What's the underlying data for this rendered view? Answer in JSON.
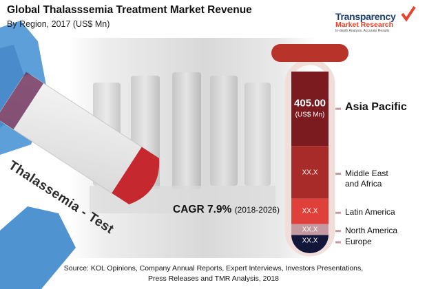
{
  "title": "Global Thalasssemia Treatment Market Revenue",
  "subtitle": "By Region, 2017 (US$ Mn)",
  "logo": {
    "line1": "Transparency",
    "line2": "Market Research",
    "tagline": "In-depth Analysis. Accurate Results"
  },
  "tube_label": "Thalassemia - Test",
  "cagr": {
    "label": "CAGR 7.9%",
    "period": "(2018-2026)"
  },
  "source": {
    "line1": "Source: KOL Opinions, Company Annual Reports, Expert Interviews, Investors Presentations,",
    "line2": "Press Releases and TMR Analysis, 2018"
  },
  "colors": {
    "tube_cap": "#b8342b",
    "tube_frame": "#f1ddd9",
    "segments": [
      "#7b1a1f",
      "#a82a29",
      "#e0403a",
      "#c49aa0",
      "#12173a"
    ]
  },
  "chart_data": {
    "type": "bar",
    "orientation": "stacked-vertical",
    "categories": [
      "Asia Pacific",
      "Middle East and Africa",
      "Latin America",
      "North America",
      "Europe"
    ],
    "value_labels": [
      "405.00",
      "XX.X",
      "XX.X",
      "XX.X",
      "XX.X"
    ],
    "unit_label": "(US$ Mn)",
    "series": [
      {
        "values": [
          405.0,
          null,
          null,
          null,
          null
        ]
      }
    ],
    "segment_share": [
      0.41,
      0.29,
      0.14,
      0.06,
      0.1
    ],
    "title": "Global Thalasssemia Treatment Market Revenue",
    "subtitle": "By Region, 2017 (US$ Mn)",
    "annotations": [
      "CAGR 7.9% (2018-2026)"
    ]
  }
}
